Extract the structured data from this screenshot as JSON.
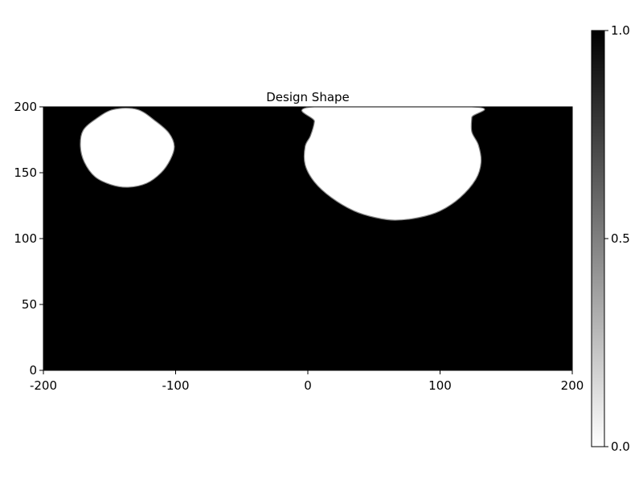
{
  "chart_data": {
    "type": "heatmap",
    "title": "Design Shape",
    "xlabel": "",
    "ylabel": "",
    "xlim": [
      -200,
      200
    ],
    "ylim": [
      0,
      200
    ],
    "x_ticks": [
      "-200",
      "-100",
      "0",
      "100",
      "200"
    ],
    "x_tick_values": [
      -200,
      -100,
      0,
      100,
      200
    ],
    "y_ticks": [
      "0",
      "50",
      "100",
      "150",
      "200"
    ],
    "y_tick_values": [
      0,
      50,
      100,
      150,
      200
    ],
    "colormap": "grayscale",
    "colors": {
      "low": "#ffffff",
      "high": "#000000"
    },
    "background_value": 1.0,
    "region_value": 0.0,
    "colorbar": {
      "range": [
        0.0,
        1.0
      ],
      "ticks": [
        "0.0",
        "0.5",
        "1.0"
      ],
      "tick_values": [
        0.0,
        0.5,
        1.0
      ],
      "placement": "right"
    },
    "regions": [
      {
        "name": "left-void",
        "outline": [
          [
            -147,
            198
          ],
          [
            -160,
            191
          ],
          [
            -170,
            182
          ],
          [
            -172,
            170
          ],
          [
            -169,
            158
          ],
          [
            -161,
            147
          ],
          [
            -149,
            141
          ],
          [
            -136,
            139
          ],
          [
            -122,
            142
          ],
          [
            -111,
            150
          ],
          [
            -104,
            160
          ],
          [
            -101,
            170
          ],
          [
            -105,
            180
          ],
          [
            -115,
            189
          ],
          [
            -129,
            198
          ]
        ]
      },
      {
        "name": "right-void",
        "outline": [
          [
            4,
            200
          ],
          [
            5,
            189
          ],
          [
            2,
            178
          ],
          [
            -2,
            170
          ],
          [
            -2,
            156
          ],
          [
            5,
            143
          ],
          [
            18,
            131
          ],
          [
            35,
            121
          ],
          [
            51,
            116
          ],
          [
            66,
            114
          ],
          [
            84,
            116
          ],
          [
            100,
            121
          ],
          [
            115,
            131
          ],
          [
            127,
            145
          ],
          [
            131,
            158
          ],
          [
            129,
            171
          ],
          [
            124,
            181
          ],
          [
            124,
            192
          ],
          [
            125,
            200
          ]
        ]
      }
    ]
  }
}
